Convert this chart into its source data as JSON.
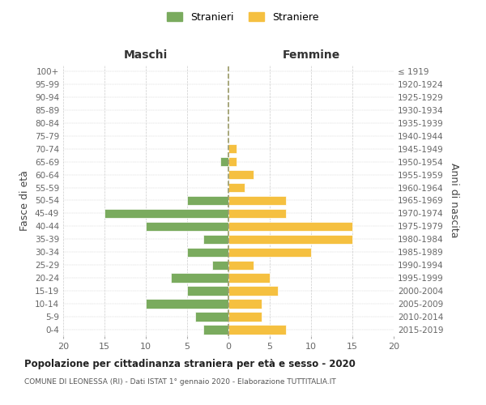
{
  "age_groups_bottom_to_top": [
    "0-4",
    "5-9",
    "10-14",
    "15-19",
    "20-24",
    "25-29",
    "30-34",
    "35-39",
    "40-44",
    "45-49",
    "50-54",
    "55-59",
    "60-64",
    "65-69",
    "70-74",
    "75-79",
    "80-84",
    "85-89",
    "90-94",
    "95-99",
    "100+"
  ],
  "birth_years_bottom_to_top": [
    "2015-2019",
    "2010-2014",
    "2005-2009",
    "2000-2004",
    "1995-1999",
    "1990-1994",
    "1985-1989",
    "1980-1984",
    "1975-1979",
    "1970-1974",
    "1965-1969",
    "1960-1964",
    "1955-1959",
    "1950-1954",
    "1945-1949",
    "1940-1944",
    "1935-1939",
    "1930-1934",
    "1925-1929",
    "1920-1924",
    "≤ 1919"
  ],
  "maschi_bottom_to_top": [
    3,
    4,
    10,
    5,
    7,
    2,
    5,
    3,
    10,
    15,
    5,
    0,
    0,
    1,
    0,
    0,
    0,
    0,
    0,
    0,
    0
  ],
  "femmine_bottom_to_top": [
    7,
    4,
    4,
    6,
    5,
    3,
    10,
    15,
    15,
    7,
    7,
    2,
    3,
    1,
    1,
    0,
    0,
    0,
    0,
    0,
    0
  ],
  "maschi_color": "#7aab5e",
  "femmine_color": "#f5c040",
  "title": "Popolazione per cittadinanza straniera per età e sesso - 2020",
  "subtitle": "COMUNE DI LEONESSA (RI) - Dati ISTAT 1° gennaio 2020 - Elaborazione TUTTITALIA.IT",
  "xlabel_left": "Maschi",
  "xlabel_right": "Femmine",
  "ylabel_left": "Fasce di età",
  "ylabel_right": "Anni di nascita",
  "legend_stranieri": "Stranieri",
  "legend_straniere": "Straniere",
  "xlim": 20,
  "background_color": "#ffffff",
  "grid_color": "#cccccc"
}
